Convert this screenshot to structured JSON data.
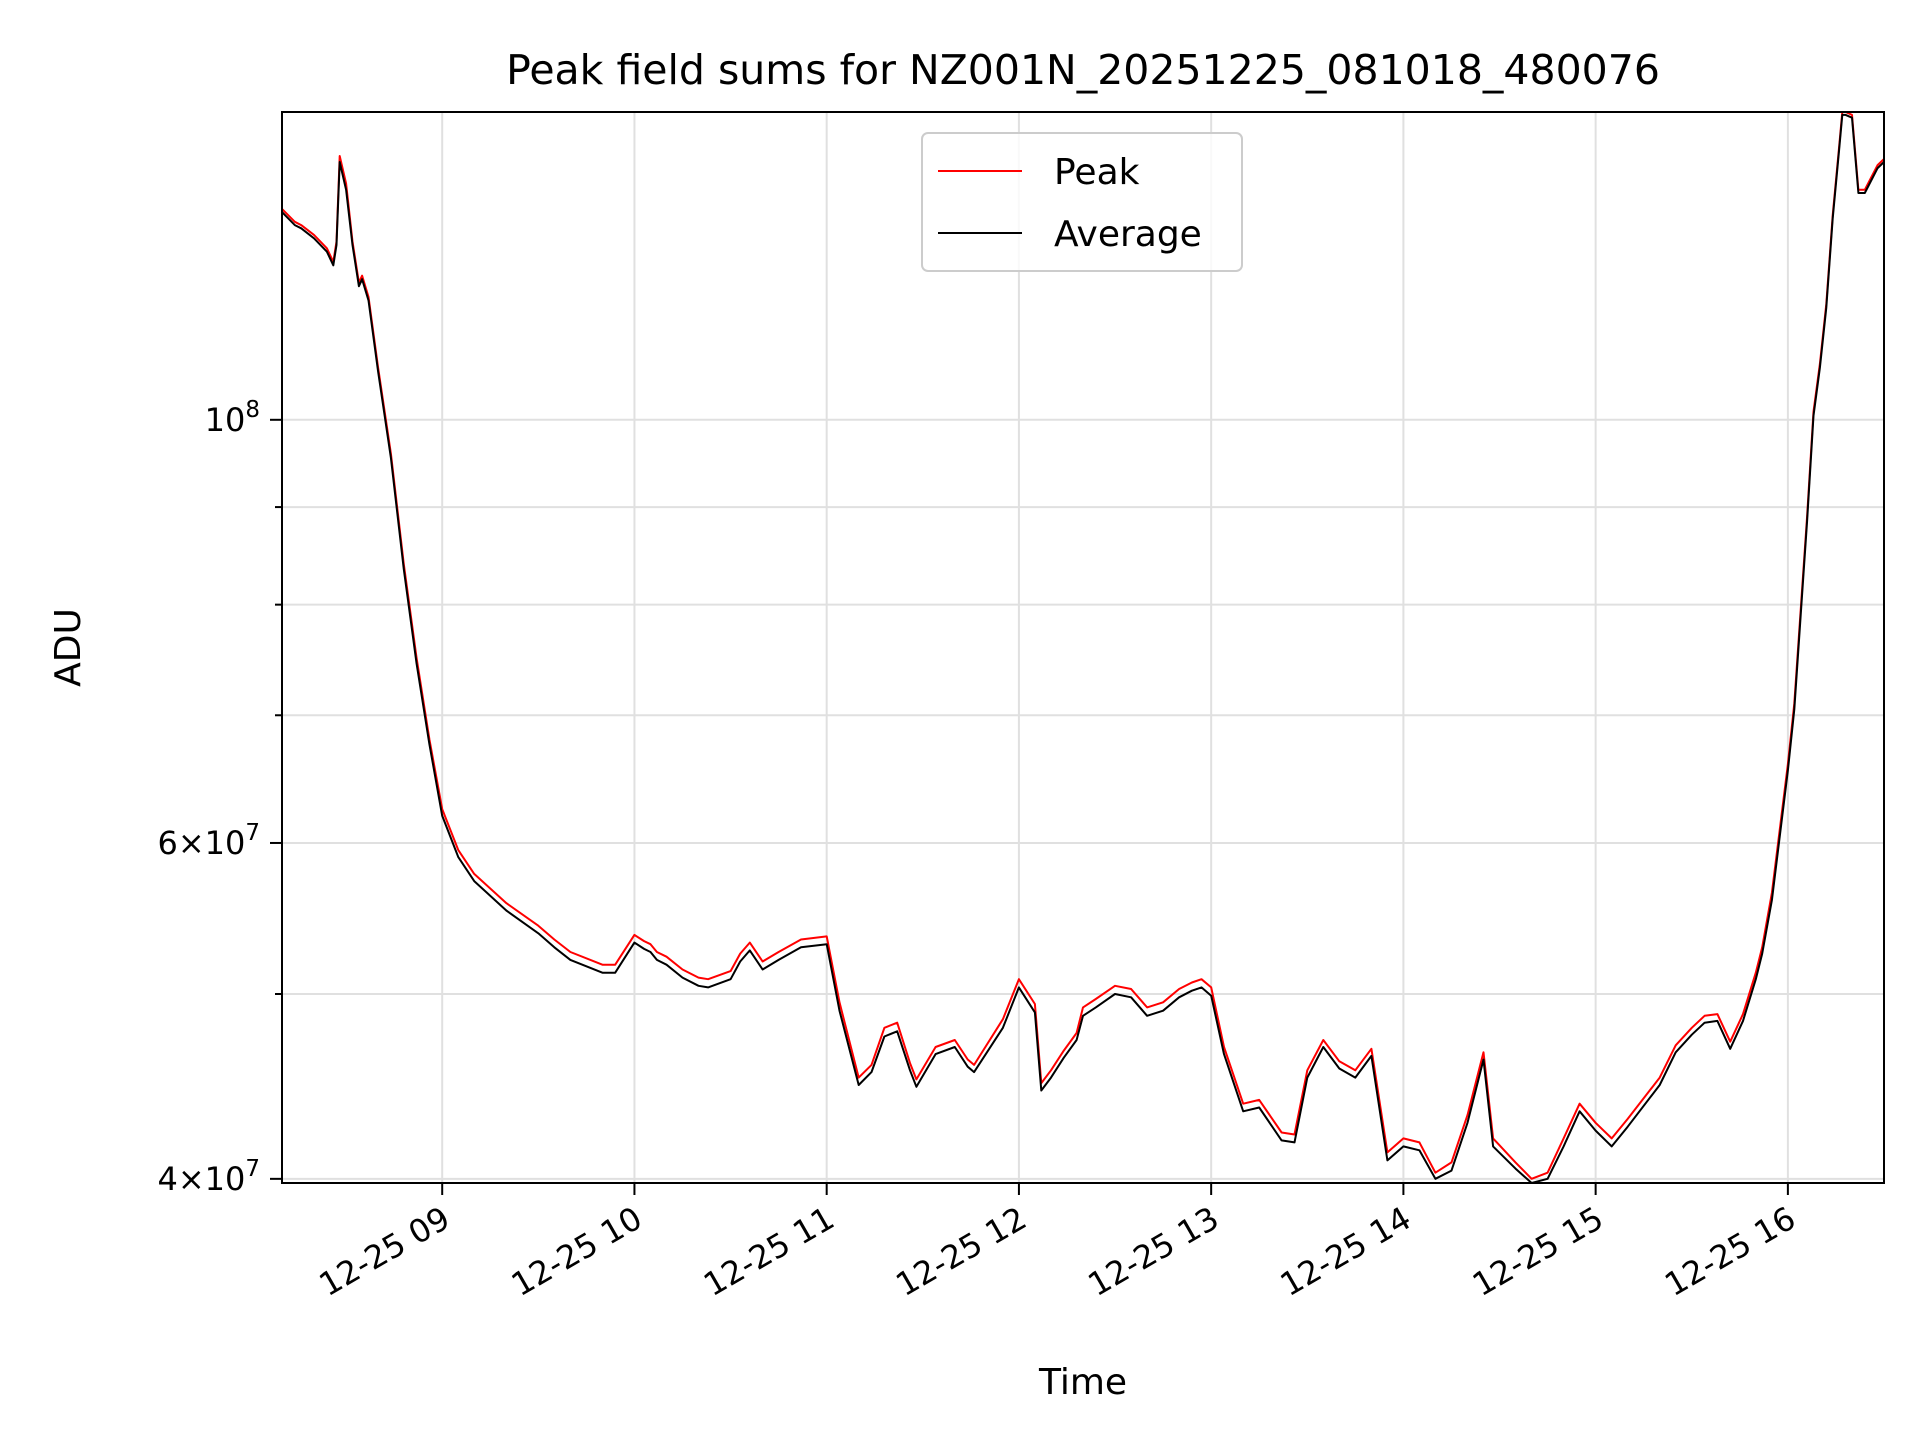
{
  "chart_data": {
    "type": "line",
    "title": "Peak field sums for NZ001N_20251225_081018_480076",
    "xlabel": "Time",
    "ylabel": "ADU",
    "y_scale": "log",
    "ylim": [
      39800000,
      145000000
    ],
    "xlim": [
      "2025-12-25 08:10",
      "2025-12-25 16:30"
    ],
    "x_ticks": [
      "2025-12-25 09:00",
      "2025-12-25 10:00",
      "2025-12-25 11:00",
      "2025-12-25 12:00",
      "2025-12-25 13:00",
      "2025-12-25 14:00",
      "2025-12-25 15:00",
      "2025-12-25 16:00"
    ],
    "x_tick_labels": [
      "12-25 09",
      "12-25 10",
      "12-25 11",
      "12-25 12",
      "12-25 13",
      "12-25 14",
      "12-25 15",
      "12-25 16"
    ],
    "y_ticks": [
      {
        "value": 40000000,
        "mantissa": "4",
        "exp": "7"
      },
      {
        "value": 60000000,
        "mantissa": "6",
        "exp": "7"
      },
      {
        "value": 100000000,
        "mantissa": "",
        "exp": "8"
      }
    ],
    "y_minor_ticks": [
      50000000,
      70000000,
      80000000,
      90000000
    ],
    "grid": true,
    "legend_position": "top-center",
    "series": [
      {
        "name": "Peak",
        "color": "#ff0000",
        "x": [
          "2025-12-25 08:10",
          "2025-12-25 08:14",
          "2025-12-25 08:16",
          "2025-12-25 08:20",
          "2025-12-25 08:24",
          "2025-12-25 08:26",
          "2025-12-25 08:27",
          "2025-12-25 08:28",
          "2025-12-25 08:30",
          "2025-12-25 08:32",
          "2025-12-25 08:34",
          "2025-12-25 08:35",
          "2025-12-25 08:37",
          "2025-12-25 08:40",
          "2025-12-25 08:44",
          "2025-12-25 08:48",
          "2025-12-25 08:52",
          "2025-12-25 08:56",
          "2025-12-25 09:00",
          "2025-12-25 09:05",
          "2025-12-25 09:10",
          "2025-12-25 09:20",
          "2025-12-25 09:30",
          "2025-12-25 09:35",
          "2025-12-25 09:40",
          "2025-12-25 09:50",
          "2025-12-25 09:54",
          "2025-12-25 10:00",
          "2025-12-25 10:03",
          "2025-12-25 10:05",
          "2025-12-25 10:07",
          "2025-12-25 10:10",
          "2025-12-25 10:15",
          "2025-12-25 10:20",
          "2025-12-25 10:23",
          "2025-12-25 10:30",
          "2025-12-25 10:33",
          "2025-12-25 10:36",
          "2025-12-25 10:40",
          "2025-12-25 10:45",
          "2025-12-25 10:52",
          "2025-12-25 11:00",
          "2025-12-25 11:04",
          "2025-12-25 11:10",
          "2025-12-25 11:14",
          "2025-12-25 11:18",
          "2025-12-25 11:22",
          "2025-12-25 11:26",
          "2025-12-25 11:28",
          "2025-12-25 11:34",
          "2025-12-25 11:40",
          "2025-12-25 11:44",
          "2025-12-25 11:46",
          "2025-12-25 11:55",
          "2025-12-25 12:00",
          "2025-12-25 12:05",
          "2025-12-25 12:07",
          "2025-12-25 12:10",
          "2025-12-25 12:14",
          "2025-12-25 12:18",
          "2025-12-25 12:20",
          "2025-12-25 12:24",
          "2025-12-25 12:30",
          "2025-12-25 12:35",
          "2025-12-25 12:40",
          "2025-12-25 12:45",
          "2025-12-25 12:50",
          "2025-12-25 12:54",
          "2025-12-25 12:57",
          "2025-12-25 13:00",
          "2025-12-25 13:04",
          "2025-12-25 13:10",
          "2025-12-25 13:15",
          "2025-12-25 13:22",
          "2025-12-25 13:26",
          "2025-12-25 13:30",
          "2025-12-25 13:35",
          "2025-12-25 13:40",
          "2025-12-25 13:45",
          "2025-12-25 13:50",
          "2025-12-25 13:55",
          "2025-12-25 14:00",
          "2025-12-25 14:05",
          "2025-12-25 14:10",
          "2025-12-25 14:15",
          "2025-12-25 14:20",
          "2025-12-25 14:25",
          "2025-12-25 14:28",
          "2025-12-25 14:35",
          "2025-12-25 14:40",
          "2025-12-25 14:45",
          "2025-12-25 14:50",
          "2025-12-25 14:55",
          "2025-12-25 15:00",
          "2025-12-25 15:05",
          "2025-12-25 15:10",
          "2025-12-25 15:20",
          "2025-12-25 15:25",
          "2025-12-25 15:30",
          "2025-12-25 15:34",
          "2025-12-25 15:38",
          "2025-12-25 15:42",
          "2025-12-25 15:46",
          "2025-12-25 15:50",
          "2025-12-25 15:52",
          "2025-12-25 15:55",
          "2025-12-25 16:00",
          "2025-12-25 16:02",
          "2025-12-25 16:04",
          "2025-12-25 16:06",
          "2025-12-25 16:08",
          "2025-12-25 16:10",
          "2025-12-25 16:12",
          "2025-12-25 16:14",
          "2025-12-25 16:16",
          "2025-12-25 16:17",
          "2025-12-25 16:18",
          "2025-12-25 16:20",
          "2025-12-25 16:22",
          "2025-12-25 16:24",
          "2025-12-25 16:26",
          "2025-12-25 16:28",
          "2025-12-25 16:30"
        ],
        "y": [
          129000000,
          127000000,
          126500000,
          125000000,
          123000000,
          121000000,
          124000000,
          137500000,
          133000000,
          124000000,
          118000000,
          119000000,
          116000000,
          106500000,
          96000000,
          84000000,
          75000000,
          68000000,
          62500000,
          59500000,
          57800000,
          55800000,
          54300000,
          53400000,
          52600000,
          51800000,
          51800000,
          53700000,
          53300000,
          53100000,
          52600000,
          52300000,
          51500000,
          51000000,
          50900000,
          51400000,
          52500000,
          53200000,
          52000000,
          52600000,
          53400000,
          53600000,
          49500000,
          45200000,
          45900000,
          48000000,
          48300000,
          46000000,
          45100000,
          46900000,
          47300000,
          46200000,
          45900000,
          48500000,
          50900000,
          49400000,
          44900000,
          45600000,
          46700000,
          47700000,
          49200000,
          49700000,
          50500000,
          50300000,
          49200000,
          49500000,
          50300000,
          50700000,
          50900000,
          50400000,
          46900000,
          43800000,
          44000000,
          42300000,
          42200000,
          45600000,
          47300000,
          46100000,
          45600000,
          46800000,
          41300000,
          42000000,
          41800000,
          40300000,
          40800000,
          43200000,
          46600000,
          42000000,
          40800000,
          40000000,
          40300000,
          42000000,
          43800000,
          42800000,
          42000000,
          43000000,
          45200000,
          47000000,
          48000000,
          48700000,
          48800000,
          47200000,
          48800000,
          51300000,
          52900000,
          56500000,
          66000000,
          71000000,
          79500000,
          89000000,
          101000000,
          107000000,
          115000000,
          128000000,
          139000000,
          145000000,
          145000000,
          144500000,
          132000000,
          132000000,
          134000000,
          136000000,
          137000000
        ]
      },
      {
        "name": "Average",
        "color": "#000000",
        "x": [
          "2025-12-25 08:10",
          "2025-12-25 08:14",
          "2025-12-25 08:16",
          "2025-12-25 08:20",
          "2025-12-25 08:24",
          "2025-12-25 08:26",
          "2025-12-25 08:27",
          "2025-12-25 08:28",
          "2025-12-25 08:30",
          "2025-12-25 08:32",
          "2025-12-25 08:34",
          "2025-12-25 08:35",
          "2025-12-25 08:37",
          "2025-12-25 08:40",
          "2025-12-25 08:44",
          "2025-12-25 08:48",
          "2025-12-25 08:52",
          "2025-12-25 08:56",
          "2025-12-25 09:00",
          "2025-12-25 09:05",
          "2025-12-25 09:10",
          "2025-12-25 09:20",
          "2025-12-25 09:30",
          "2025-12-25 09:35",
          "2025-12-25 09:40",
          "2025-12-25 09:50",
          "2025-12-25 09:54",
          "2025-12-25 10:00",
          "2025-12-25 10:03",
          "2025-12-25 10:05",
          "2025-12-25 10:07",
          "2025-12-25 10:10",
          "2025-12-25 10:15",
          "2025-12-25 10:20",
          "2025-12-25 10:23",
          "2025-12-25 10:30",
          "2025-12-25 10:33",
          "2025-12-25 10:36",
          "2025-12-25 10:40",
          "2025-12-25 10:45",
          "2025-12-25 10:52",
          "2025-12-25 11:00",
          "2025-12-25 11:04",
          "2025-12-25 11:10",
          "2025-12-25 11:14",
          "2025-12-25 11:18",
          "2025-12-25 11:22",
          "2025-12-25 11:26",
          "2025-12-25 11:28",
          "2025-12-25 11:34",
          "2025-12-25 11:40",
          "2025-12-25 11:44",
          "2025-12-25 11:46",
          "2025-12-25 11:55",
          "2025-12-25 12:00",
          "2025-12-25 12:05",
          "2025-12-25 12:07",
          "2025-12-25 12:10",
          "2025-12-25 12:14",
          "2025-12-25 12:18",
          "2025-12-25 12:20",
          "2025-12-25 12:24",
          "2025-12-25 12:30",
          "2025-12-25 12:35",
          "2025-12-25 12:40",
          "2025-12-25 12:45",
          "2025-12-25 12:50",
          "2025-12-25 12:54",
          "2025-12-25 12:57",
          "2025-12-25 13:00",
          "2025-12-25 13:04",
          "2025-12-25 13:10",
          "2025-12-25 13:15",
          "2025-12-25 13:22",
          "2025-12-25 13:26",
          "2025-12-25 13:30",
          "2025-12-25 13:35",
          "2025-12-25 13:40",
          "2025-12-25 13:45",
          "2025-12-25 13:50",
          "2025-12-25 13:55",
          "2025-12-25 14:00",
          "2025-12-25 14:05",
          "2025-12-25 14:10",
          "2025-12-25 14:15",
          "2025-12-25 14:20",
          "2025-12-25 14:25",
          "2025-12-25 14:28",
          "2025-12-25 14:35",
          "2025-12-25 14:40",
          "2025-12-25 14:45",
          "2025-12-25 14:50",
          "2025-12-25 14:55",
          "2025-12-25 15:00",
          "2025-12-25 15:05",
          "2025-12-25 15:10",
          "2025-12-25 15:20",
          "2025-12-25 15:25",
          "2025-12-25 15:30",
          "2025-12-25 15:34",
          "2025-12-25 15:38",
          "2025-12-25 15:42",
          "2025-12-25 15:46",
          "2025-12-25 15:50",
          "2025-12-25 15:52",
          "2025-12-25 15:55",
          "2025-12-25 16:00",
          "2025-12-25 16:02",
          "2025-12-25 16:04",
          "2025-12-25 16:06",
          "2025-12-25 16:08",
          "2025-12-25 16:10",
          "2025-12-25 16:12",
          "2025-12-25 16:14",
          "2025-12-25 16:16",
          "2025-12-25 16:17",
          "2025-12-25 16:18",
          "2025-12-25 16:20",
          "2025-12-25 16:22",
          "2025-12-25 16:24",
          "2025-12-25 16:26",
          "2025-12-25 16:28",
          "2025-12-25 16:30"
        ],
        "y": [
          128500000,
          126500000,
          126000000,
          124500000,
          122500000,
          120500000,
          123500000,
          136500000,
          132000000,
          123500000,
          117500000,
          118500000,
          115500000,
          106000000,
          95500000,
          83500000,
          74500000,
          67600000,
          62000000,
          59000000,
          57300000,
          55300000,
          53800000,
          52900000,
          52100000,
          51300000,
          51300000,
          53200000,
          52800000,
          52600000,
          52100000,
          51800000,
          51000000,
          50500000,
          50400000,
          50900000,
          52000000,
          52700000,
          51500000,
          52100000,
          52900000,
          53100000,
          49000000,
          44800000,
          45500000,
          47500000,
          47800000,
          45600000,
          44700000,
          46500000,
          46900000,
          45800000,
          45500000,
          48000000,
          50400000,
          48900000,
          44500000,
          45200000,
          46300000,
          47300000,
          48700000,
          49200000,
          50000000,
          49800000,
          48700000,
          49000000,
          49800000,
          50200000,
          50400000,
          49900000,
          46500000,
          43400000,
          43600000,
          41900000,
          41800000,
          45200000,
          46900000,
          45700000,
          45200000,
          46400000,
          40900000,
          41600000,
          41400000,
          40000000,
          40400000,
          42800000,
          46200000,
          41600000,
          40500000,
          39800000,
          40000000,
          41600000,
          43400000,
          42400000,
          41600000,
          42600000,
          44800000,
          46600000,
          47600000,
          48300000,
          48400000,
          46800000,
          48400000,
          50900000,
          52500000,
          56000000,
          65500000,
          70500000,
          79000000,
          88500000,
          100500000,
          106500000,
          114500000,
          127500000,
          138500000,
          144500000,
          144500000,
          144000000,
          131500000,
          131500000,
          133500000,
          135500000,
          136500000
        ]
      }
    ]
  }
}
